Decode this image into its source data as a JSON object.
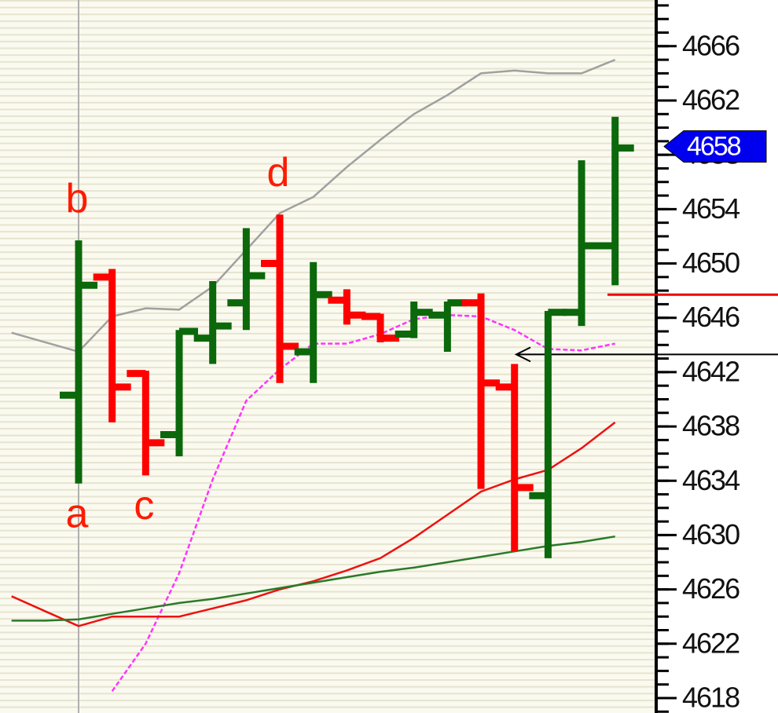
{
  "chart_data": {
    "type": "ohlc",
    "ylim": [
      4616.9,
      4669.4
    ],
    "yticks": [
      4666,
      4662,
      4658,
      4654,
      4650,
      4646,
      4642,
      4638,
      4634,
      4630,
      4626,
      4622,
      4618
    ],
    "minor_yticks": [
      4617,
      4618,
      4619,
      4620,
      4621,
      4622,
      4623,
      4624,
      4625,
      4626,
      4627,
      4628,
      4629,
      4630,
      4631,
      4632,
      4633,
      4634,
      4635,
      4636,
      4637,
      4638,
      4639,
      4640,
      4641,
      4642,
      4643,
      4644,
      4645,
      4646,
      4647,
      4648,
      4649,
      4650,
      4651,
      4652,
      4653,
      4654,
      4655,
      4656,
      4657,
      4658,
      4659,
      4660,
      4661,
      4662,
      4663,
      4664,
      4665,
      4666,
      4667,
      4668,
      4669
    ],
    "bars": {
      "open": [
        4640.3,
        4649.0,
        4641.9,
        4637.4,
        4644.5,
        4647.1,
        4650.0,
        4643.5,
        4647.3,
        4646.1,
        4644.8,
        4646.2,
        4647.1,
        4640.9,
        4632.9,
        4646.4,
        4651.3
      ],
      "high": [
        4651.7,
        4649.6,
        4642.1,
        4645.1,
        4648.7,
        4652.6,
        4653.6,
        4650.1,
        4648.1,
        4646.3,
        4647.2,
        4647.2,
        4647.8,
        4642.6,
        4646.5,
        4657.6,
        4660.8
      ],
      "low": [
        4633.8,
        4638.3,
        4634.4,
        4635.8,
        4642.6,
        4645.1,
        4641.2,
        4641.2,
        4645.5,
        4644.2,
        4644.5,
        4643.5,
        4633.4,
        4628.8,
        4628.3,
        4645.4,
        4648.4
      ],
      "close": [
        4648.4,
        4640.9,
        4636.8,
        4645.0,
        4645.4,
        4649.1,
        4643.9,
        4647.7,
        4646.2,
        4644.5,
        4646.4,
        4647.1,
        4641.2,
        4633.5,
        4646.4,
        4651.3,
        4658.5
      ]
    },
    "up_color": "#0b680b",
    "down_color": "#ff0000",
    "lines": [
      {
        "color": "#a0a0a0",
        "x": [
          -2,
          -1,
          0,
          1,
          2,
          3,
          4,
          5,
          6,
          7,
          8,
          9,
          10,
          11,
          12,
          13,
          14,
          15,
          16
        ],
        "values": [
          4644.9,
          4644.2,
          4643.5,
          4646.1,
          4646.7,
          4646.6,
          4648.3,
          4651.0,
          4653.7,
          4654.9,
          4657.1,
          4659.1,
          4661.0,
          4662.4,
          4664.0,
          4664.2,
          4664.0,
          4664.0,
          4665.0
        ]
      },
      {
        "color": "#ff33ff",
        "dashed": true,
        "x": [
          -2,
          -1,
          0,
          1,
          2,
          3,
          4,
          5,
          6,
          7,
          8,
          9,
          10,
          11,
          12,
          13,
          14,
          15,
          16
        ],
        "values": [
          null,
          null,
          null,
          4618.5,
          4622.0,
          4627.2,
          4634.1,
          4639.9,
          4642.2,
          4644.1,
          4644.1,
          4644.8,
          4645.9,
          4646.2,
          4646.1,
          4645.1,
          4643.7,
          4643.6,
          4644.1
        ]
      },
      {
        "color": "#ee1111",
        "x": [
          -2,
          -1,
          0,
          1,
          2,
          3,
          4,
          5,
          6,
          7,
          8,
          9,
          10,
          11,
          12,
          13,
          14,
          15,
          16
        ],
        "values": [
          4625.5,
          4624.4,
          4623.3,
          4624.0,
          4624.0,
          4624.0,
          4624.6,
          4625.2,
          4626.0,
          4626.6,
          4627.4,
          4628.3,
          4629.8,
          4631.5,
          4633.2,
          4634.1,
          4634.8,
          4636.4,
          4638.3
        ]
      },
      {
        "color": "#2a7a2a",
        "x": [
          -2,
          -1,
          0,
          1,
          2,
          3,
          4,
          5,
          6,
          7,
          8,
          9,
          10,
          11,
          12,
          13,
          14,
          15,
          16
        ],
        "values": [
          4623.7,
          4623.7,
          4623.8,
          4624.2,
          4624.6,
          4625.0,
          4625.3,
          4625.7,
          4626.1,
          4626.5,
          4626.9,
          4627.3,
          4627.6,
          4628.0,
          4628.4,
          4628.8,
          4629.2,
          4629.5,
          4629.9
        ]
      }
    ],
    "levels": [
      {
        "value": 4647.7,
        "color": "#ee0000"
      },
      {
        "value": 4643.3,
        "color": "#000000",
        "arrow": true
      }
    ],
    "annotations": [
      {
        "text": "b",
        "bar": 0,
        "at": "high"
      },
      {
        "text": "a",
        "bar": 0,
        "at": "low"
      },
      {
        "text": "c",
        "bar": 2,
        "at": "low"
      },
      {
        "text": "d",
        "bar": 6,
        "at": "high"
      }
    ],
    "last_price": {
      "value": 4658.5,
      "label": "4658"
    },
    "cursor_bar": 0
  }
}
